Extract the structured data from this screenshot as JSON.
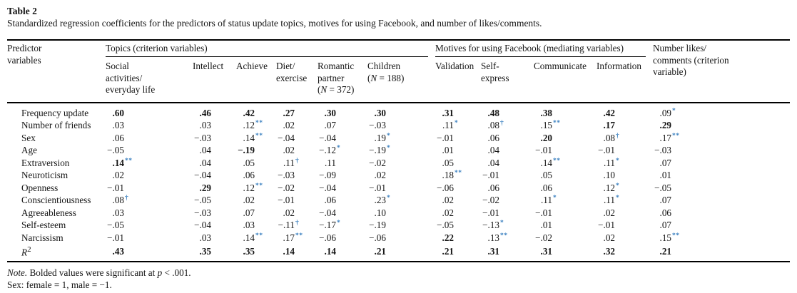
{
  "colors": {
    "significance_mark": "#3a80c0",
    "rule": "#000000"
  },
  "table": {
    "label": "Table 2",
    "caption": "Standardized regression coefficients for the predictors of status update topics, motives for using Facebook, and number of likes/comments.",
    "header": {
      "stub": {
        "lines": [
          "Predictor",
          "variables"
        ]
      },
      "groups": [
        {
          "label": "Topics (criterion variables)",
          "colspan": 6
        },
        {
          "label": "Motives for using Facebook (mediating variables)",
          "colspan": 4
        }
      ],
      "last": {
        "lines": [
          "Number likes/",
          "comments (criterion",
          "variable)"
        ]
      },
      "subs": [
        {
          "lines": [
            "Social",
            "activities/",
            "everyday life"
          ]
        },
        {
          "lines": [
            "Intellect"
          ]
        },
        {
          "lines": [
            "Achieve"
          ]
        },
        {
          "lines": [
            "Diet/",
            "exercise"
          ]
        },
        {
          "lines": [
            "Romantic",
            "partner",
            "(N = 372)"
          ]
        },
        {
          "lines": [
            "Children",
            "(N = 188)"
          ]
        },
        {
          "lines": [
            "Validation"
          ]
        },
        {
          "lines": [
            "Self-",
            "express"
          ]
        },
        {
          "lines": [
            "Communicate"
          ]
        },
        {
          "lines": [
            "Information"
          ]
        }
      ]
    },
    "rows": [
      {
        "label": "Frequency update",
        "cells": [
          {
            "v": ".60",
            "b": true
          },
          {
            "v": ".46",
            "b": true
          },
          {
            "v": ".42",
            "b": true
          },
          {
            "v": ".27",
            "b": true
          },
          {
            "v": ".30",
            "b": true
          },
          {
            "v": ".30",
            "b": true
          },
          {
            "v": ".31",
            "b": true
          },
          {
            "v": ".48",
            "b": true
          },
          {
            "v": ".38",
            "b": true
          },
          {
            "v": ".42",
            "b": true
          },
          {
            "v": ".09",
            "m": "*"
          }
        ]
      },
      {
        "label": "Number of friends",
        "cells": [
          {
            "v": ".03"
          },
          {
            "v": ".03"
          },
          {
            "v": ".12",
            "m": "**"
          },
          {
            "v": ".02"
          },
          {
            "v": ".07"
          },
          {
            "v": "−.03"
          },
          {
            "v": ".11",
            "m": "*"
          },
          {
            "v": ".08",
            "m": "†"
          },
          {
            "v": ".15",
            "m": "**"
          },
          {
            "v": ".17",
            "b": true
          },
          {
            "v": ".29",
            "b": true
          }
        ]
      },
      {
        "label": "Sex",
        "cells": [
          {
            "v": ".06"
          },
          {
            "v": "−.03"
          },
          {
            "v": ".14",
            "m": "**"
          },
          {
            "v": "−.04"
          },
          {
            "v": "−.04"
          },
          {
            "v": ".19",
            "m": "*"
          },
          {
            "v": "−.01"
          },
          {
            "v": ".06"
          },
          {
            "v": ".20",
            "b": true
          },
          {
            "v": ".08",
            "m": "†"
          },
          {
            "v": ".17",
            "m": "**"
          }
        ]
      },
      {
        "label": "Age",
        "cells": [
          {
            "v": "−.05"
          },
          {
            "v": ".04"
          },
          {
            "v": "−.19",
            "b": true
          },
          {
            "v": ".02"
          },
          {
            "v": "−.12",
            "m": "*"
          },
          {
            "v": "−.19",
            "m": "*"
          },
          {
            "v": ".01"
          },
          {
            "v": ".04"
          },
          {
            "v": "−.01"
          },
          {
            "v": "−.01"
          },
          {
            "v": "−.03"
          }
        ]
      },
      {
        "label": "Extraversion",
        "cells": [
          {
            "v": ".14",
            "b": true,
            "m": "**"
          },
          {
            "v": ".04"
          },
          {
            "v": ".05"
          },
          {
            "v": ".11",
            "m": "†"
          },
          {
            "v": ".11"
          },
          {
            "v": "−.02"
          },
          {
            "v": ".05"
          },
          {
            "v": ".04"
          },
          {
            "v": ".14",
            "m": "**"
          },
          {
            "v": ".11",
            "m": "*"
          },
          {
            "v": ".07"
          }
        ]
      },
      {
        "label": "Neuroticism",
        "cells": [
          {
            "v": ".02"
          },
          {
            "v": "−.04"
          },
          {
            "v": ".06"
          },
          {
            "v": "−.03"
          },
          {
            "v": "−.09"
          },
          {
            "v": ".02"
          },
          {
            "v": ".18",
            "m": "**"
          },
          {
            "v": "−.01"
          },
          {
            "v": ".05"
          },
          {
            "v": ".10"
          },
          {
            "v": ".01"
          }
        ]
      },
      {
        "label": "Openness",
        "cells": [
          {
            "v": "−.01"
          },
          {
            "v": ".29",
            "b": true
          },
          {
            "v": ".12",
            "m": "**"
          },
          {
            "v": "−.02"
          },
          {
            "v": "−.04"
          },
          {
            "v": "−.01"
          },
          {
            "v": "−.06"
          },
          {
            "v": ".06"
          },
          {
            "v": ".06"
          },
          {
            "v": ".12",
            "m": "*"
          },
          {
            "v": "−.05"
          }
        ]
      },
      {
        "label": "Conscientiousness",
        "cells": [
          {
            "v": ".08",
            "m": "†"
          },
          {
            "v": "−.05"
          },
          {
            "v": ".02"
          },
          {
            "v": "−.01"
          },
          {
            "v": ".06"
          },
          {
            "v": ".23",
            "m": "*"
          },
          {
            "v": ".02"
          },
          {
            "v": "−.02"
          },
          {
            "v": ".11",
            "m": "*"
          },
          {
            "v": ".11",
            "m": "*"
          },
          {
            "v": ".07"
          }
        ]
      },
      {
        "label": "Agreeableness",
        "cells": [
          {
            "v": ".03"
          },
          {
            "v": "−.03"
          },
          {
            "v": ".07"
          },
          {
            "v": ".02"
          },
          {
            "v": "−.04"
          },
          {
            "v": ".10"
          },
          {
            "v": ".02"
          },
          {
            "v": "−.01"
          },
          {
            "v": "−.01"
          },
          {
            "v": ".02"
          },
          {
            "v": ".06"
          }
        ]
      },
      {
        "label": "Self-esteem",
        "cells": [
          {
            "v": "−.05"
          },
          {
            "v": "−.04"
          },
          {
            "v": ".03"
          },
          {
            "v": "−.11",
            "m": "†"
          },
          {
            "v": "−.17",
            "m": "*"
          },
          {
            "v": "−.19"
          },
          {
            "v": "−.05"
          },
          {
            "v": "−.13",
            "m": "*"
          },
          {
            "v": ".01"
          },
          {
            "v": "−.01"
          },
          {
            "v": ".07"
          }
        ]
      },
      {
        "label": "Narcissism",
        "cells": [
          {
            "v": "−.01"
          },
          {
            "v": ".03"
          },
          {
            "v": ".14",
            "m": "**"
          },
          {
            "v": ".17",
            "m": "**"
          },
          {
            "v": "−.06"
          },
          {
            "v": "−.06"
          },
          {
            "v": ".22",
            "b": true
          },
          {
            "v": ".13",
            "m": "**"
          },
          {
            "v": "−.02"
          },
          {
            "v": ".02"
          },
          {
            "v": ".15",
            "m": "**"
          }
        ]
      },
      {
        "label": "R",
        "label_sup": "2",
        "label_italic": true,
        "cells": [
          {
            "v": ".43",
            "b": true
          },
          {
            "v": ".35",
            "b": true
          },
          {
            "v": ".35",
            "b": true
          },
          {
            "v": ".14",
            "b": true
          },
          {
            "v": ".14",
            "b": true
          },
          {
            "v": ".21",
            "b": true
          },
          {
            "v": ".21",
            "b": true
          },
          {
            "v": ".31",
            "b": true
          },
          {
            "v": ".31",
            "b": true
          },
          {
            "v": ".32",
            "b": true
          },
          {
            "v": ".21",
            "b": true
          }
        ]
      }
    ]
  },
  "notes": [
    {
      "name": "note-significance",
      "parts": [
        {
          "t": "Note.",
          "i": true
        },
        {
          "t": " Bolded values were significant at "
        },
        {
          "t": "p",
          "i": true
        },
        {
          "t": " < .001."
        }
      ]
    },
    {
      "name": "note-sex-coding",
      "parts": [
        {
          "t": "Sex: female = 1, male = −1."
        }
      ]
    }
  ]
}
